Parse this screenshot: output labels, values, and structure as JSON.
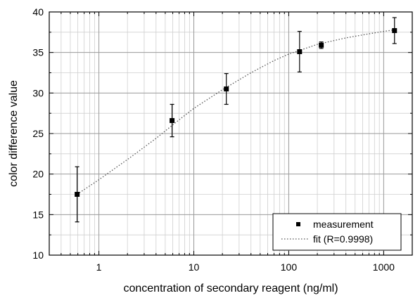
{
  "chart_data": {
    "type": "scatter",
    "xlabel": "concentration of secondary reagent (ng/ml)",
    "ylabel": "color difference value",
    "xscale": "log",
    "xlim": [
      0.3,
      2000
    ],
    "ylim": [
      10,
      40
    ],
    "x_tick_labels": [
      "1",
      "10",
      "100",
      "1000"
    ],
    "y_tick_labels": [
      "10",
      "15",
      "20",
      "25",
      "30",
      "35",
      "40"
    ],
    "grid": true,
    "legend_position": "bottom-right",
    "series": [
      {
        "name": "measurement",
        "marker": "square",
        "color": "#000000",
        "points": [
          {
            "x": 0.59,
            "y": 17.5,
            "err": 3.4
          },
          {
            "x": 5.9,
            "y": 26.6,
            "err": 2.0
          },
          {
            "x": 22,
            "y": 30.5,
            "err": 1.9
          },
          {
            "x": 130,
            "y": 35.1,
            "err": 2.5
          },
          {
            "x": 220,
            "y": 35.9,
            "err": 0.4
          },
          {
            "x": 1300,
            "y": 37.7,
            "err": 1.6
          }
        ]
      },
      {
        "name": "fit (R=0.9998)",
        "style": "dotted",
        "color": "#555555",
        "x": [
          0.59,
          1,
          2,
          4,
          7,
          10,
          20,
          40,
          70,
          100,
          200,
          400,
          700,
          1000,
          1300
        ],
        "y": [
          17.5,
          19.3,
          21.8,
          24.4,
          26.7,
          28.1,
          30.4,
          32.5,
          34.0,
          34.8,
          36.0,
          36.8,
          37.3,
          37.6,
          37.8
        ]
      }
    ]
  }
}
